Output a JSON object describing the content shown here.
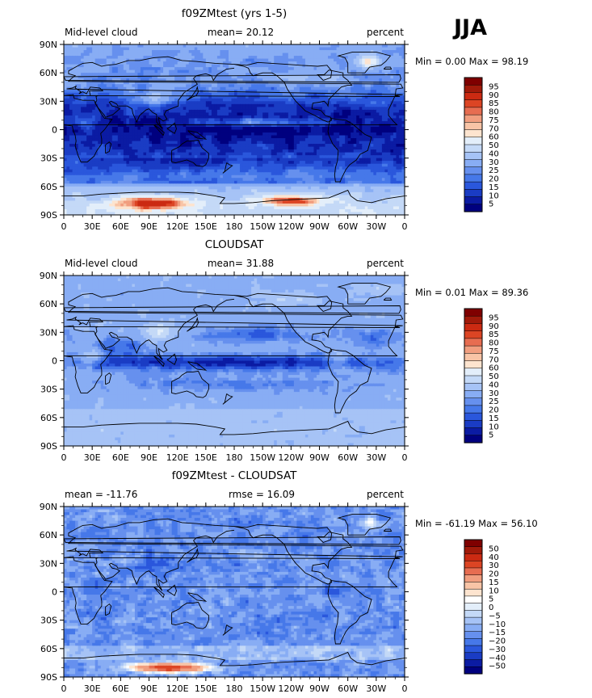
{
  "season": "JJA",
  "lat_labels": [
    "90N",
    "60N",
    "30N",
    "0",
    "30S",
    "60S",
    "90S"
  ],
  "lon_labels": [
    "0",
    "30E",
    "60E",
    "90E",
    "120E",
    "150E",
    "180",
    "150W",
    "120W",
    "90W",
    "60W",
    "30W",
    "0"
  ],
  "colors": {
    "seq": [
      "#00007f",
      "#0b1ba3",
      "#1a3cc4",
      "#2a57dc",
      "#4678e9",
      "#6690ee",
      "#88adf4",
      "#a6c3f6",
      "#c4d9f7",
      "#e3eefa",
      "#fde4cf",
      "#f8c4a6",
      "#f19e7f",
      "#e76d51",
      "#dc4524",
      "#cb2a12",
      "#a11a0a",
      "#7f0000"
    ],
    "diff": [
      "#00007f",
      "#0b1ba3",
      "#1a3cc4",
      "#2a57dc",
      "#4678e9",
      "#6690ee",
      "#88adf4",
      "#a6c3f6",
      "#c4d9f7",
      "#e3eefa",
      "#ffffff",
      "#fde4cf",
      "#f8c4a6",
      "#f19e7f",
      "#e76d51",
      "#dc4524",
      "#cb2a12",
      "#a11a0a",
      "#7f0000"
    ],
    "coast": "#000000"
  },
  "chart_data": [
    {
      "type": "heatmap",
      "title": "f09ZMtest (yrs 1-5)",
      "left_label": "Mid-level cloud",
      "mean_label": "mean=  20.12",
      "right_label": "percent",
      "minmax_label": "Min =    0.00 Max =   98.19",
      "field": "model",
      "stats": {
        "mean": 20.12,
        "min": 0.0,
        "max": 98.19
      },
      "colorbar_labels": [
        "95",
        "90",
        "85",
        "80",
        "75",
        "70",
        "60",
        "50",
        "40",
        "30",
        "25",
        "20",
        "15",
        "10",
        "5"
      ],
      "colorbar_levels": [
        5,
        10,
        15,
        20,
        25,
        30,
        40,
        50,
        60,
        70,
        75,
        80,
        85,
        90,
        95
      ]
    },
    {
      "type": "heatmap",
      "title": "CLOUDSAT",
      "left_label": "Mid-level cloud",
      "mean_label": "mean=  31.88",
      "right_label": "percent",
      "minmax_label": "Min =    0.01 Max =   89.36",
      "field": "obs",
      "stats": {
        "mean": 31.88,
        "min": 0.01,
        "max": 89.36
      },
      "colorbar_labels": [
        "95",
        "90",
        "85",
        "80",
        "75",
        "70",
        "60",
        "50",
        "40",
        "30",
        "25",
        "20",
        "15",
        "10",
        "5"
      ],
      "colorbar_levels": [
        5,
        10,
        15,
        20,
        25,
        30,
        40,
        50,
        60,
        70,
        75,
        80,
        85,
        90,
        95
      ]
    },
    {
      "type": "heatmap",
      "title": "f09ZMtest - CLOUDSAT",
      "left_label": "mean = -11.76",
      "mean_label": "rmse =  16.09",
      "right_label": "percent",
      "minmax_label": "Min = -61.19 Max =   56.10",
      "field": "diff",
      "stats": {
        "mean": -11.76,
        "rmse": 16.09,
        "min": -61.19,
        "max": 56.1
      },
      "colorbar_labels": [
        "50",
        "40",
        "30",
        "20",
        "15",
        "10",
        "5",
        "0",
        "−5",
        "−10",
        "−15",
        "−20",
        "−30",
        "−40",
        "−50"
      ],
      "colorbar_levels": [
        -50,
        -40,
        -30,
        -20,
        -15,
        -10,
        -5,
        0,
        5,
        10,
        15,
        20,
        30,
        40,
        50
      ]
    }
  ]
}
